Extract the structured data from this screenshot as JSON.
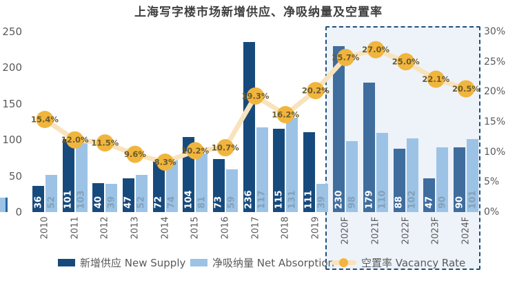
{
  "title": "上海写字楼市场新增供应、净吸纳量及空置率",
  "legend": {
    "new_supply": "新增供应 New Supply",
    "net_absorption": "净吸纳量 Net Absorption",
    "vacancy": "空置率 Vacancy Rate"
  },
  "colors": {
    "supply": "#174A7C",
    "supply_forecast": "#3F6D9D",
    "absorption": "#9CC3E5",
    "line": "#F8E3BD",
    "marker": "#F1B53D",
    "marker_label": "#6B5A2B",
    "axis_text": "#595959",
    "bar_value_on_dark": "#FFFFFF",
    "bar_value_on_light": "#82A0BC",
    "forecast_border": "#1F4E79",
    "forecast_bg": "#EDF3F9"
  },
  "chart_data": {
    "type": "bar",
    "subtype": "grouped bars with overlaid line (dual axis)",
    "title": "上海写字楼市场新增供应、净吸纳量及空置率",
    "categories": [
      "2010",
      "2011",
      "2012",
      "2013",
      "2014",
      "2015",
      "2016",
      "2017",
      "2018",
      "2019",
      "2020F",
      "2021F",
      "2022F",
      "2023F",
      "2024F"
    ],
    "series": [
      {
        "name": "新增供应 New Supply",
        "type": "bar",
        "axis": "left",
        "values": [
          36,
          101,
          40,
          47,
          72,
          104,
          73,
          236,
          115,
          111,
          230,
          179,
          88,
          47,
          90
        ]
      },
      {
        "name": "净吸纳量 Net Absorption",
        "type": "bar",
        "axis": "left",
        "values": [
          52,
          103,
          39,
          52,
          74,
          81,
          59,
          117,
          131,
          39,
          98,
          110,
          102,
          90,
          101
        ]
      },
      {
        "name": "空置率 Vacancy Rate",
        "type": "line",
        "axis": "right",
        "values": [
          15.4,
          12.0,
          11.5,
          9.6,
          8.3,
          10.2,
          10.7,
          19.3,
          16.2,
          20.2,
          25.7,
          27.0,
          25.0,
          22.1,
          20.5
        ],
        "labels": [
          "15.4%",
          "12.0%",
          "11.5%",
          "9.6%",
          "8.3%",
          "10.2%",
          "10.7%",
          "19.3%",
          "16.2%",
          "20.2%",
          "25.7%",
          "27.0%",
          "25.0%",
          "22.1%",
          "20.5%"
        ]
      }
    ],
    "left_axis": {
      "ticks": [
        "0",
        "50",
        "100",
        "150",
        "200",
        "250"
      ],
      "range": [
        0,
        250
      ]
    },
    "right_axis": {
      "ticks": [
        "0%",
        "5%",
        "10%",
        "15%",
        "20%",
        "25%",
        "30%"
      ],
      "range": [
        0,
        30
      ]
    },
    "forecast_start": "2020F",
    "grid": "off",
    "legend_position": "bottom"
  }
}
